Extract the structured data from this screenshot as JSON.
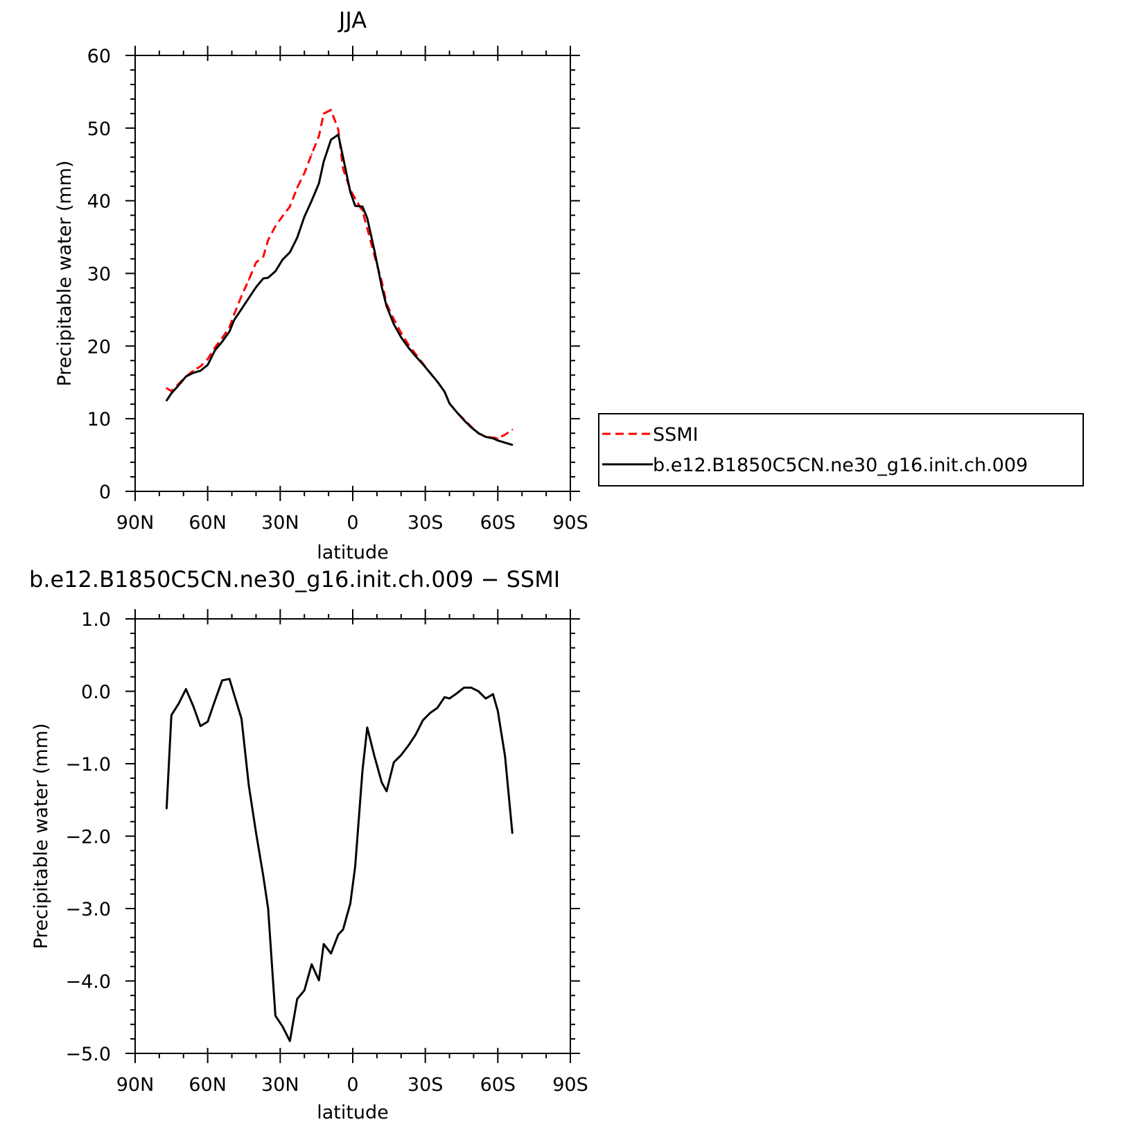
{
  "chart_data": [
    {
      "type": "line",
      "title": "JJA",
      "xlabel": "latitude",
      "ylabel": "Precipitable water (mm)",
      "xlim": [
        90,
        -90
      ],
      "ylim": [
        0,
        60
      ],
      "x_ticks": [
        90,
        60,
        30,
        0,
        -30,
        -60,
        -90
      ],
      "x_tick_labels": [
        "90N",
        "60N",
        "30N",
        "0",
        "30S",
        "60S",
        "90S"
      ],
      "y_ticks": [
        0,
        10,
        20,
        30,
        40,
        50,
        60
      ],
      "y_tick_labels": [
        "0",
        "10",
        "20",
        "30",
        "40",
        "50",
        "60"
      ],
      "grid": false,
      "legend_position": "right",
      "series": [
        {
          "name": "SSMI",
          "color": "#ff0000",
          "dash": "dashed",
          "x": [
            77,
            75,
            72,
            69,
            66,
            63,
            60,
            57,
            54,
            51,
            49,
            46,
            43,
            40,
            37,
            35,
            32,
            29,
            26,
            23,
            20,
            17,
            14,
            12,
            9,
            6,
            4,
            1,
            -1,
            -4,
            -6,
            -9,
            -12,
            -14,
            -17,
            -20,
            -23,
            -26,
            -29,
            -32,
            -35,
            -38,
            -40,
            -43,
            -46,
            -49,
            -52,
            -55,
            -58,
            -60,
            -63,
            -66
          ],
          "values": [
            14.2,
            13.8,
            14.8,
            15.8,
            16.6,
            17.2,
            18.2,
            19.8,
            21.1,
            22.6,
            24.4,
            26.9,
            29.1,
            31.5,
            32.3,
            34.6,
            36.5,
            37.9,
            39.2,
            41.8,
            43.8,
            46.4,
            48.9,
            52.0,
            52.5,
            49.8,
            44.4,
            41.5,
            40.3,
            38.6,
            36.2,
            32.4,
            28.9,
            25.8,
            23.7,
            21.8,
            20.2,
            18.9,
            17.6,
            16.3,
            15.1,
            13.7,
            12.1,
            10.9,
            9.9,
            8.9,
            8.0,
            7.5,
            7.4,
            7.3,
            7.8,
            8.5
          ]
        },
        {
          "name": "b.e12.B1850C5CN.ne30_g16.init.ch.009",
          "color": "#000000",
          "dash": "solid",
          "x": [
            77,
            75,
            72,
            69,
            66,
            63,
            60,
            57,
            54,
            51,
            49,
            46,
            43,
            40,
            37,
            35,
            32,
            29,
            26,
            23,
            20,
            17,
            14,
            12,
            9,
            6,
            4,
            1,
            -1,
            -4,
            -6,
            -9,
            -12,
            -14,
            -17,
            -20,
            -23,
            -26,
            -29,
            -32,
            -35,
            -38,
            -40,
            -43,
            -46,
            -49,
            -52,
            -55,
            -58,
            -60,
            -63,
            -66
          ],
          "values": [
            12.5,
            13.5,
            14.6,
            15.8,
            16.3,
            16.6,
            17.4,
            19.4,
            20.6,
            22.0,
            23.6,
            25.1,
            26.6,
            28.1,
            29.3,
            29.4,
            30.3,
            31.9,
            32.9,
            34.9,
            37.8,
            40.0,
            42.4,
            45.4,
            48.4,
            49.1,
            46.0,
            41.2,
            39.3,
            39.2,
            37.6,
            33.1,
            28.1,
            25.5,
            23.0,
            21.2,
            19.8,
            18.6,
            17.5,
            16.3,
            15.1,
            13.7,
            12.1,
            10.9,
            9.8,
            8.8,
            8.0,
            7.5,
            7.3,
            7.0,
            6.7,
            6.4
          ]
        }
      ]
    },
    {
      "type": "line",
      "title": "b.e12.B1850C5CN.ne30_g16.init.ch.009 − SSMI",
      "xlabel": "latitude",
      "ylabel": "Precipitable water (mm)",
      "xlim": [
        90,
        -90
      ],
      "ylim": [
        -5,
        1
      ],
      "x_ticks": [
        90,
        60,
        30,
        0,
        -30,
        -60,
        -90
      ],
      "x_tick_labels": [
        "90N",
        "60N",
        "30N",
        "0",
        "30S",
        "60S",
        "90S"
      ],
      "y_ticks": [
        1,
        0,
        -1,
        -2,
        -3,
        -4,
        -5
      ],
      "y_tick_labels": [
        "1.0",
        "0.0",
        "−1.0",
        "−2.0",
        "−3.0",
        "−4.0",
        "−5.0"
      ],
      "grid": false,
      "series": [
        {
          "color": "#000000",
          "dash": "solid",
          "x": [
            77,
            75,
            72,
            69,
            66,
            63,
            60,
            57,
            54,
            51,
            49,
            46,
            43,
            40,
            37,
            35,
            32,
            29,
            26,
            23,
            20,
            17,
            14,
            12,
            9,
            6,
            4,
            1,
            -1,
            -4,
            -6,
            -9,
            -12,
            -14,
            -17,
            -20,
            -23,
            -26,
            -29,
            -32,
            -35,
            -38,
            -40,
            -43,
            -46,
            -49,
            -52,
            -55,
            -58,
            -60,
            -63,
            -66
          ],
          "values": [
            -1.62,
            -0.33,
            -0.17,
            0.03,
            -0.2,
            -0.48,
            -0.42,
            -0.13,
            0.15,
            0.17,
            -0.05,
            -0.38,
            -1.3,
            -1.95,
            -2.55,
            -3.0,
            -4.48,
            -4.63,
            -4.83,
            -4.25,
            -4.13,
            -3.77,
            -3.99,
            -3.49,
            -3.62,
            -3.36,
            -3.29,
            -2.93,
            -2.42,
            -1.1,
            -0.5,
            -0.9,
            -1.26,
            -1.38,
            -0.98,
            -0.88,
            -0.75,
            -0.6,
            -0.4,
            -0.3,
            -0.23,
            -0.08,
            -0.1,
            -0.03,
            0.05,
            0.05,
            0.0,
            -0.1,
            -0.04,
            -0.27,
            -0.9,
            -1.96
          ]
        }
      ]
    }
  ]
}
